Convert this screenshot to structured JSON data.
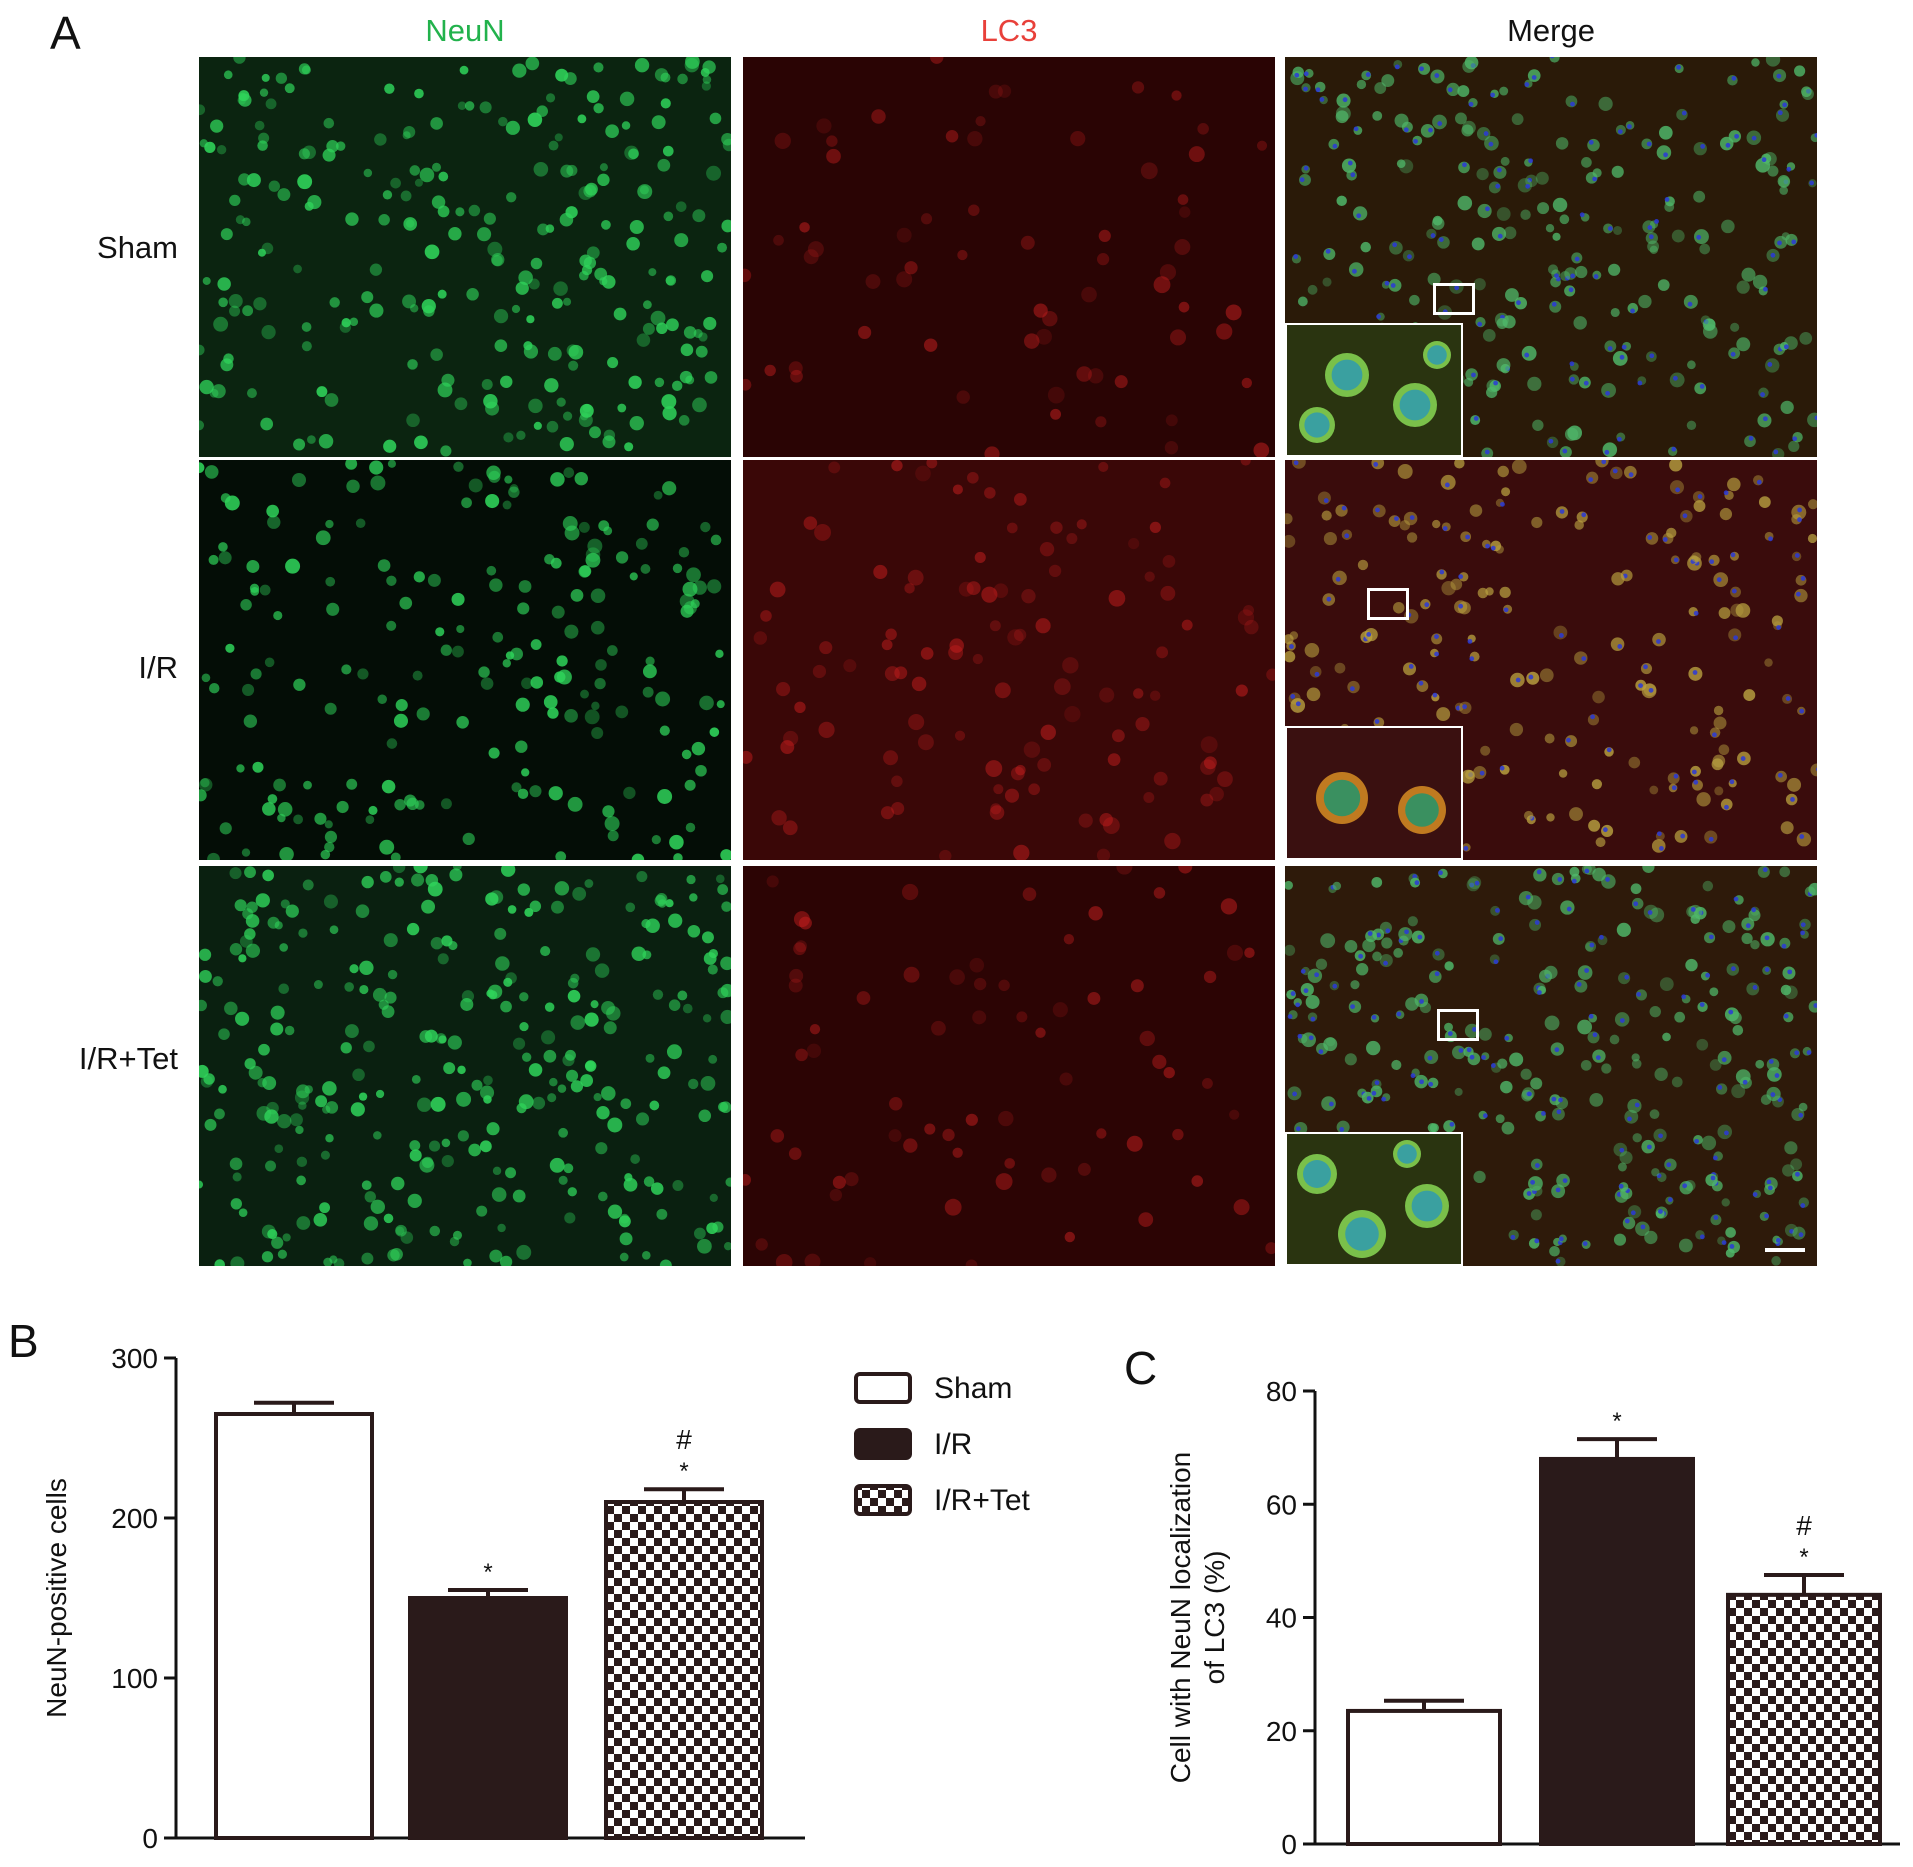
{
  "panelA": {
    "letter": "A",
    "columns": [
      {
        "label": "NeuN",
        "color": "#22b24c"
      },
      {
        "label": "LC3",
        "color": "#e8403a"
      },
      {
        "label": "Merge",
        "color": "#111111"
      }
    ],
    "rows": [
      "Sham",
      "I/R",
      "I/R+Tet"
    ]
  },
  "chart_data": [
    {
      "panel": "B",
      "type": "bar",
      "categories": [
        "Sham",
        "I/R",
        "I/R+Tet"
      ],
      "values": [
        265,
        150,
        210
      ],
      "errors": [
        7,
        5,
        8
      ],
      "annotations": [
        "",
        "*",
        "#\n*"
      ],
      "ylabel": "NeuN-positive cells",
      "xlabel": "",
      "ylim": [
        0,
        300
      ],
      "yticks": [
        0,
        100,
        200,
        300
      ],
      "legend": {
        "placement": "right",
        "entries": [
          {
            "label": "Sham",
            "pattern": "white"
          },
          {
            "label": "I/R",
            "pattern": "dark"
          },
          {
            "label": "I/R+Tet",
            "pattern": "checker"
          }
        ]
      }
    },
    {
      "panel": "C",
      "type": "bar",
      "categories": [
        "Sham",
        "I/R",
        "I/R+Tet"
      ],
      "values": [
        23.5,
        68,
        44
      ],
      "errors": [
        1.8,
        3.5,
        3.5
      ],
      "annotations": [
        "",
        "*",
        "#\n*"
      ],
      "ylabel": "Cell with NeuN localization of LC3 (%)",
      "ylabel_lines": [
        "Cell with NeuN localization",
        "of LC3 (%)"
      ],
      "xlabel": "",
      "ylim": [
        0,
        80
      ],
      "yticks": [
        0,
        20,
        40,
        60,
        80
      ]
    }
  ],
  "colors": {
    "bar_dark": "#2a1a1a",
    "bar_white": "#ffffff",
    "neun_green": "#2fd35a",
    "lc3_red": "#c01818",
    "dapi_blue": "#2a3ad8"
  }
}
